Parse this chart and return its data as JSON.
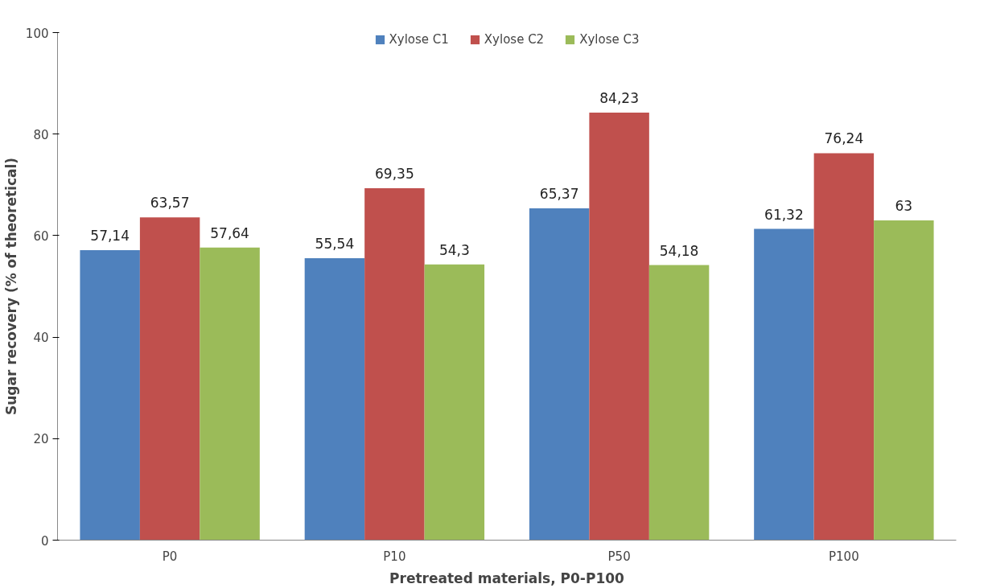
{
  "chart_data": {
    "type": "bar",
    "xlabel": "Pretreated materials, P0-P100",
    "ylabel": "Sugar recovery (% of theoretical)",
    "categories": [
      "P0",
      "P10",
      "P50",
      "P100"
    ],
    "series": [
      {
        "name": "Xylose C1",
        "color": "#4f81bd",
        "values": [
          57.14,
          55.54,
          65.37,
          61.32
        ],
        "value_labels": [
          "57,14",
          "55,54",
          "65,37",
          "61,32"
        ]
      },
      {
        "name": "Xylose C2",
        "color": "#c0504d",
        "values": [
          63.57,
          69.35,
          84.23,
          76.24
        ],
        "value_labels": [
          "63,57",
          "69,35",
          "84,23",
          "76,24"
        ]
      },
      {
        "name": "Xylose C3",
        "color": "#9bbb59",
        "values": [
          57.64,
          54.3,
          54.18,
          63
        ],
        "value_labels": [
          "57,64",
          "54,3",
          "54,18",
          "63"
        ]
      }
    ],
    "ylim": [
      0,
      100
    ],
    "yticks": [
      0,
      20,
      40,
      60,
      80,
      100
    ],
    "grid": false,
    "legend": "top"
  }
}
